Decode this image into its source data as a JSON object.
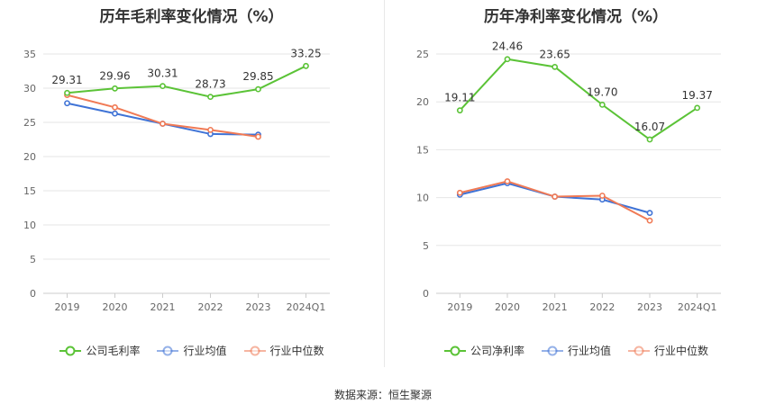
{
  "source_label": "数据来源：恒生聚源",
  "chart_data": [
    {
      "type": "line",
      "title": "历年毛利率变化情况（%）",
      "categories": [
        "2019",
        "2020",
        "2021",
        "2022",
        "2023",
        "2024Q1"
      ],
      "ylim": [
        0,
        35
      ],
      "yticks": [
        0,
        5,
        10,
        15,
        20,
        25,
        30,
        35
      ],
      "grid": true,
      "legend_position": "bottom",
      "series": [
        {
          "name": "公司毛利率",
          "color": "#5bc337",
          "values": [
            29.31,
            29.96,
            30.31,
            28.73,
            29.85,
            33.25
          ],
          "labeled": true
        },
        {
          "name": "行业均值",
          "color": "#3f73d6",
          "values": [
            27.8,
            26.3,
            24.8,
            23.3,
            23.2,
            null
          ],
          "labeled": false
        },
        {
          "name": "行业中位数",
          "color": "#f07a55",
          "values": [
            29.0,
            27.2,
            24.8,
            23.9,
            22.9,
            null
          ],
          "labeled": false
        }
      ],
      "value_labels": [
        "29.31",
        "29.96",
        "30.31",
        "28.73",
        "29.85",
        "33.25"
      ]
    },
    {
      "type": "line",
      "title": "历年净利率变化情况（%）",
      "categories": [
        "2019",
        "2020",
        "2021",
        "2022",
        "2023",
        "2024Q1"
      ],
      "ylim": [
        0,
        25
      ],
      "yticks": [
        0,
        5,
        10,
        15,
        20,
        25
      ],
      "grid": true,
      "legend_position": "bottom",
      "series": [
        {
          "name": "公司净利率",
          "color": "#5bc337",
          "values": [
            19.11,
            24.46,
            23.65,
            19.7,
            16.07,
            19.37
          ],
          "labeled": true
        },
        {
          "name": "行业均值",
          "color": "#3f73d6",
          "values": [
            10.3,
            11.5,
            10.1,
            9.8,
            8.4,
            null
          ],
          "labeled": false
        },
        {
          "name": "行业中位数",
          "color": "#f07a55",
          "values": [
            10.5,
            11.7,
            10.1,
            10.2,
            7.6,
            null
          ],
          "labeled": false
        }
      ],
      "value_labels": [
        "19.11",
        "24.46",
        "23.65",
        "19.70",
        "16.07",
        "19.37"
      ]
    }
  ]
}
